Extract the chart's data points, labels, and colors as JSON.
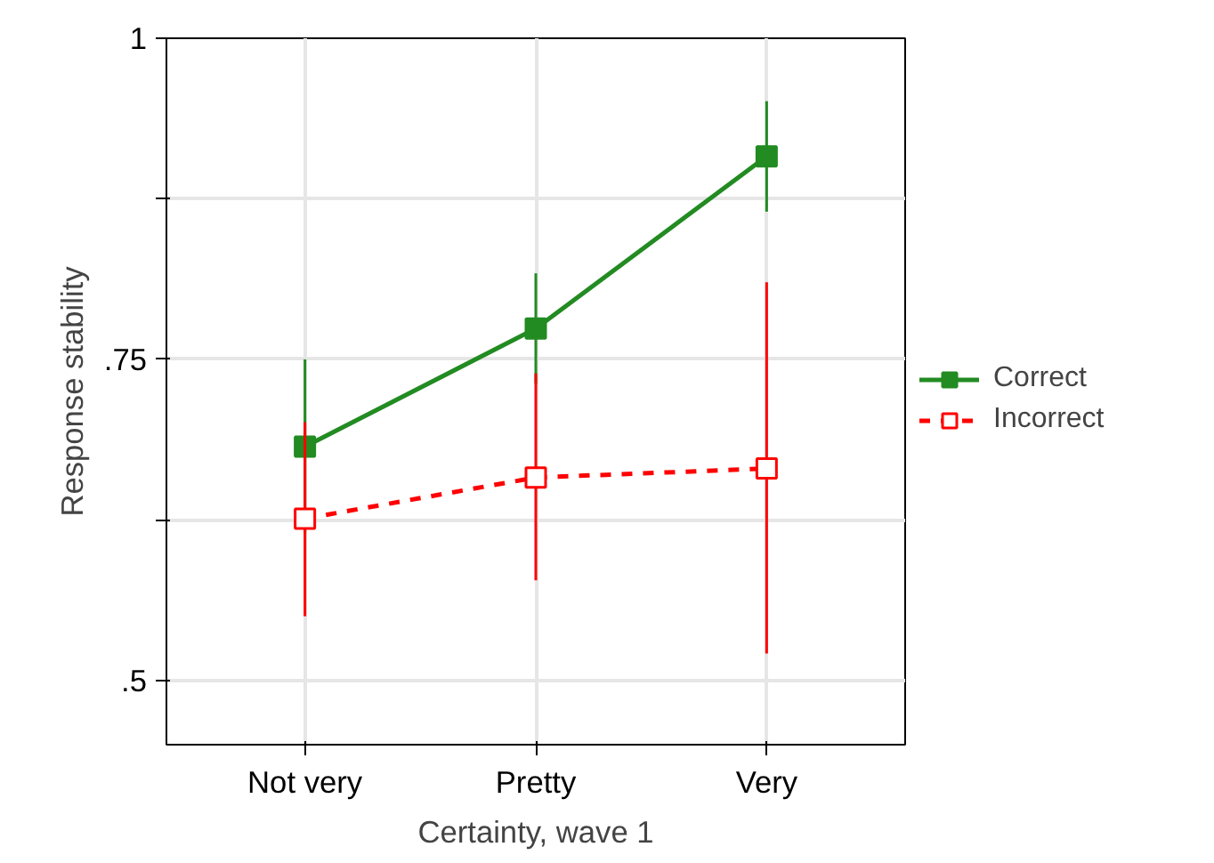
{
  "chart_data": {
    "type": "line",
    "xlabel": "Certainty, wave 1",
    "ylabel": "Response stability",
    "categories": [
      "Not very",
      "Pretty",
      "Very"
    ],
    "series": [
      {
        "name": "Correct",
        "color": "#228b22",
        "values": [
          0.682,
          0.774,
          0.908
        ],
        "errors": [
          [
            0.615,
            0.75
          ],
          [
            0.731,
            0.817
          ],
          [
            0.865,
            0.951
          ]
        ],
        "marker": "square",
        "line_style": "solid"
      },
      {
        "name": "Incorrect",
        "color": "#ff0000",
        "values": [
          0.626,
          0.658,
          0.665
        ],
        "errors": [
          [
            0.55,
            0.701
          ],
          [
            0.578,
            0.739
          ],
          [
            0.521,
            0.81
          ]
        ],
        "marker": "square",
        "line_style": "dashed"
      }
    ],
    "ylim": [
      0.45,
      1
    ],
    "yticks": [
      {
        "value": 0.5,
        "label": ".5"
      },
      {
        "value": 0.625,
        "label": null
      },
      {
        "value": 0.75,
        "label": ".75"
      },
      {
        "value": 0.875,
        "label": null
      },
      {
        "value": 1,
        "label": "1"
      }
    ],
    "grid": true,
    "legend": "right"
  }
}
